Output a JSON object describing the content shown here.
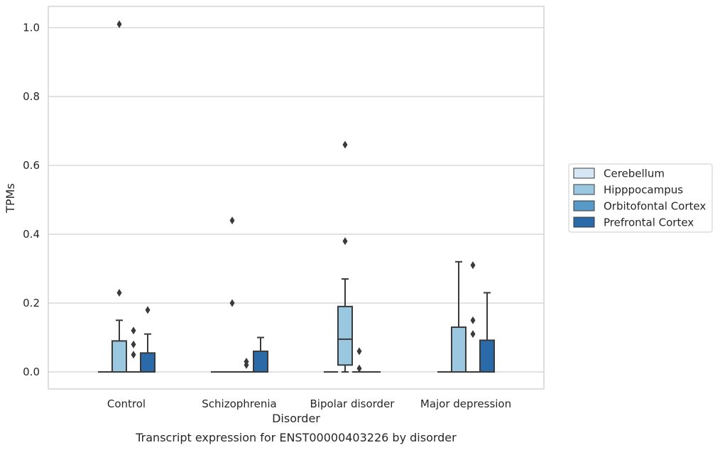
{
  "chart_data": {
    "type": "box",
    "caption": "Transcript expression for ENST00000403226 by disorder",
    "xlabel": "Disorder",
    "ylabel": "TPMs",
    "ylim": [
      -0.05,
      1.06
    ],
    "yticks": [
      "0.0",
      "0.2",
      "0.4",
      "0.6",
      "0.8",
      "1.0"
    ],
    "grid": true,
    "legend_position": "right",
    "categories": [
      "Control",
      "Schizophrenia",
      "Bipolar disorder",
      "Major depression"
    ],
    "series": [
      {
        "name": "Cerebellum",
        "color": "#d6e6f4",
        "boxes": [
          {
            "q1": 0,
            "median": 0,
            "q3": 0,
            "whisker_low": 0,
            "whisker_high": 0,
            "outliers": []
          },
          {
            "q1": 0,
            "median": 0,
            "q3": 0,
            "whisker_low": 0,
            "whisker_high": 0,
            "outliers": []
          },
          {
            "q1": 0,
            "median": 0,
            "q3": 0,
            "whisker_low": 0,
            "whisker_high": 0,
            "outliers": []
          },
          {
            "q1": 0,
            "median": 0,
            "q3": 0,
            "whisker_low": 0,
            "whisker_high": 0,
            "outliers": []
          }
        ]
      },
      {
        "name": "Hipppocampus",
        "color": "#9ac8e0",
        "boxes": [
          {
            "q1": 0,
            "median": 0,
            "q3": 0.09,
            "whisker_low": 0,
            "whisker_high": 0.15,
            "outliers": [
              0.23,
              1.01
            ]
          },
          {
            "q1": 0,
            "median": 0,
            "q3": 0,
            "whisker_low": 0,
            "whisker_high": 0,
            "outliers": [
              0.2,
              0.44
            ]
          },
          {
            "q1": 0.02,
            "median": 0.095,
            "q3": 0.19,
            "whisker_low": 0,
            "whisker_high": 0.27,
            "outliers": [
              0.38,
              0.66
            ]
          },
          {
            "q1": 0,
            "median": 0,
            "q3": 0.13,
            "whisker_low": 0,
            "whisker_high": 0.32,
            "outliers": []
          }
        ]
      },
      {
        "name": "Orbitofontal Cortex",
        "color": "#5799c7",
        "boxes": [
          {
            "q1": 0,
            "median": 0,
            "q3": 0,
            "whisker_low": 0,
            "whisker_high": 0,
            "outliers": [
              0.05,
              0.08,
              0.12
            ]
          },
          {
            "q1": 0,
            "median": 0,
            "q3": 0,
            "whisker_low": 0,
            "whisker_high": 0,
            "outliers": [
              0.02,
              0.03
            ]
          },
          {
            "q1": 0,
            "median": 0,
            "q3": 0,
            "whisker_low": 0,
            "whisker_high": 0,
            "outliers": [
              0.01,
              0.06
            ]
          },
          {
            "q1": 0,
            "median": 0,
            "q3": 0,
            "whisker_low": 0,
            "whisker_high": 0,
            "outliers": [
              0.11,
              0.15,
              0.31
            ]
          }
        ]
      },
      {
        "name": "Prefrontal Cortex",
        "color": "#2a6aa8",
        "boxes": [
          {
            "q1": 0,
            "median": 0,
            "q3": 0.055,
            "whisker_low": 0,
            "whisker_high": 0.11,
            "outliers": [
              0.18
            ]
          },
          {
            "q1": 0,
            "median": 0,
            "q3": 0.06,
            "whisker_low": 0,
            "whisker_high": 0.1,
            "outliers": []
          },
          {
            "q1": 0,
            "median": 0,
            "q3": 0,
            "whisker_low": 0,
            "whisker_high": 0,
            "outliers": []
          },
          {
            "q1": 0,
            "median": 0,
            "q3": 0.092,
            "whisker_low": 0,
            "whisker_high": 0.23,
            "outliers": []
          }
        ]
      }
    ]
  }
}
